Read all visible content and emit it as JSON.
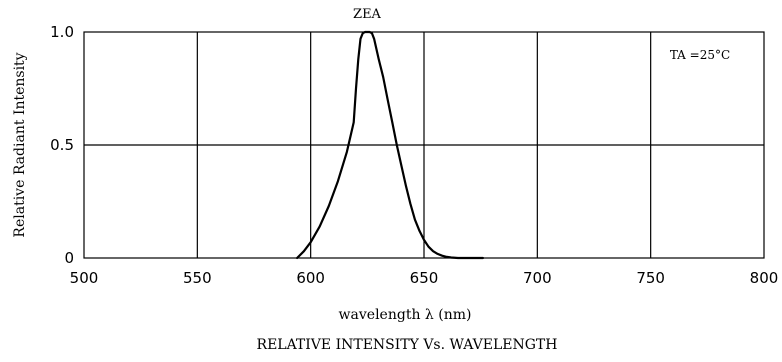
{
  "chart_data": {
    "type": "line",
    "title": "RELATIVE INTENSITY Vs. WAVELENGTH",
    "xlabel": "wavelength λ   (nm)",
    "ylabel": "Relative Radiant Intensity",
    "xlim": [
      500,
      800
    ],
    "ylim": [
      0,
      1.0
    ],
    "x_ticks": [
      500,
      550,
      600,
      650,
      700,
      750,
      800
    ],
    "x_tick_labels": [
      "500",
      "550",
      "600",
      "650",
      "700",
      "750",
      "800"
    ],
    "y_ticks": [
      0,
      0.5,
      1.0
    ],
    "y_tick_labels": [
      "0",
      "0.5",
      "1.0"
    ],
    "grid": true,
    "annotation": "TA =25°C",
    "series": [
      {
        "name": "ZEA",
        "x": [
          594,
          597,
          600,
          604,
          608,
          612,
          616,
          619,
          620,
          621,
          622,
          623,
          624,
          625,
          626,
          627,
          628,
          630,
          632,
          634,
          636,
          638,
          640,
          642,
          644,
          646,
          648,
          650,
          652,
          654,
          656,
          658,
          660,
          662,
          665,
          670,
          676
        ],
        "y": [
          0.0,
          0.03,
          0.07,
          0.14,
          0.23,
          0.34,
          0.47,
          0.6,
          0.75,
          0.88,
          0.97,
          0.995,
          1.0,
          1.0,
          1.0,
          0.995,
          0.97,
          0.88,
          0.8,
          0.7,
          0.6,
          0.5,
          0.41,
          0.32,
          0.24,
          0.17,
          0.12,
          0.08,
          0.05,
          0.03,
          0.018,
          0.01,
          0.005,
          0.002,
          0.0,
          0.0,
          0.0
        ]
      }
    ]
  }
}
